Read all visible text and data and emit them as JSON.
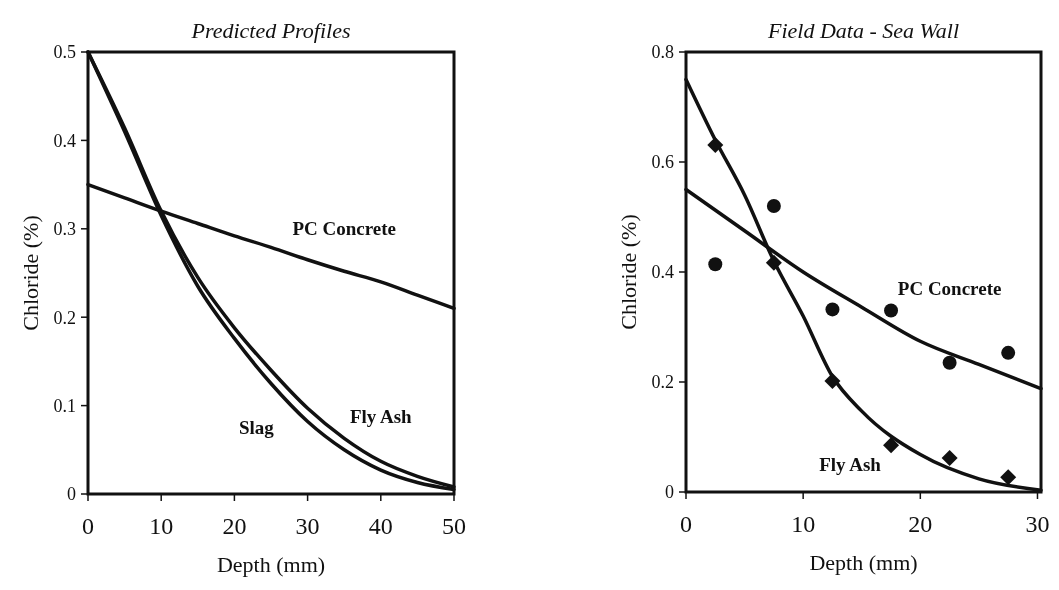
{
  "chart_data": [
    {
      "type": "line",
      "title": "Predicted Profiles",
      "xlabel": "Depth (mm)",
      "ylabel": "Chloride (%)",
      "xlim": [
        0,
        50
      ],
      "xticks": [
        0,
        10,
        20,
        30,
        40,
        50
      ],
      "ylim": [
        0,
        0.5
      ],
      "yticks": [
        0,
        0.1,
        0.2,
        0.3,
        0.4,
        0.5
      ],
      "grid": false,
      "marker": "none",
      "line_style": "solid",
      "series": [
        {
          "name": "PC Concrete",
          "color": "#111111",
          "x": [
            0,
            5,
            10,
            15,
            20,
            25,
            30,
            35,
            40,
            45,
            50
          ],
          "values": [
            0.35,
            0.335,
            0.32,
            0.306,
            0.292,
            0.279,
            0.265,
            0.252,
            0.24,
            0.225,
            0.21
          ]
        },
        {
          "name": "Fly Ash",
          "color": "#111111",
          "x": [
            0,
            5,
            10,
            15,
            20,
            25,
            30,
            35,
            40,
            45,
            50
          ],
          "values": [
            0.5,
            0.414,
            0.32,
            0.245,
            0.188,
            0.14,
            0.097,
            0.063,
            0.037,
            0.02,
            0.008
          ]
        },
        {
          "name": "Slag",
          "color": "#111111",
          "x": [
            0,
            5,
            10,
            15,
            20,
            25,
            30,
            35,
            40,
            45,
            50
          ],
          "values": [
            0.5,
            0.41,
            0.315,
            0.235,
            0.176,
            0.125,
            0.082,
            0.05,
            0.027,
            0.013,
            0.005
          ]
        }
      ]
    },
    {
      "type": "scatter",
      "title": "Field Data - Sea Wall",
      "xlabel": "Depth (mm)",
      "ylabel": "Chloride (%)",
      "xlim": [
        0,
        30.3
      ],
      "xticks": [
        0,
        10,
        20,
        30
      ],
      "ylim": [
        0,
        0.8
      ],
      "yticks": [
        0,
        0.2,
        0.4,
        0.6,
        0.8
      ],
      "grid": false,
      "series": [
        {
          "marker": "circle",
          "color": "#111111",
          "x": [
            2.5,
            7.5,
            12.5,
            17.5,
            22.5,
            27.5
          ],
          "values": [
            0.414,
            0.52,
            0.332,
            0.33,
            0.235,
            0.253
          ]
        },
        {
          "marker": "diamond",
          "color": "#111111",
          "x": [
            2.5,
            7.5,
            12.5,
            17.5,
            22.5,
            27.5
          ],
          "values": [
            0.631,
            0.417,
            0.202,
            0.085,
            0.062,
            0.027
          ]
        },
        {
          "name": "PC Concrete",
          "type": "line",
          "marker": "none",
          "color": "#111111",
          "x": [
            0,
            5,
            10,
            15,
            20,
            25,
            30.3
          ],
          "values": [
            0.55,
            0.475,
            0.4,
            0.336,
            0.274,
            0.232,
            0.188
          ]
        },
        {
          "name": "Fly Ash",
          "type": "line",
          "marker": "none",
          "color": "#111111",
          "x": [
            0,
            2.5,
            5,
            7.5,
            10,
            12.5,
            15,
            20,
            25,
            30.3
          ],
          "values": [
            0.75,
            0.64,
            0.54,
            0.42,
            0.32,
            0.21,
            0.147,
            0.068,
            0.024,
            0.003
          ]
        }
      ]
    }
  ]
}
